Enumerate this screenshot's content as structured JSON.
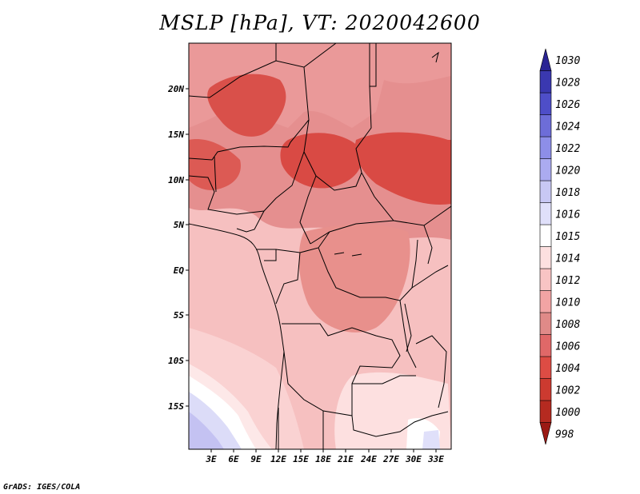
{
  "title": "MSLP [hPa], VT: 2020042600",
  "credit": "GrADS: IGES/COLA",
  "lat_labels": [
    "20N",
    "15N",
    "10N",
    "5N",
    "EQ",
    "5S",
    "10S",
    "15S"
  ],
  "lon_labels": [
    "3E",
    "6E",
    "9E",
    "12E",
    "15E",
    "18E",
    "21E",
    "24E",
    "27E",
    "30E",
    "33E"
  ],
  "colorbar": {
    "levels": [
      "998",
      "1000",
      "1002",
      "1004",
      "1006",
      "1008",
      "1010",
      "1012",
      "1014",
      "1015",
      "1016",
      "1018",
      "1020",
      "1022",
      "1024",
      "1026",
      "1028",
      "1030"
    ],
    "colors": [
      "#9b1a14",
      "#b52a20",
      "#cc3a30",
      "#dd4c44",
      "#e06868",
      "#e08a88",
      "#f2a4a4",
      "#f8c4c4",
      "#fde0e0",
      "#ffffff",
      "#e0e0fa",
      "#c8c8f4",
      "#ababf0",
      "#8d8ee8",
      "#6d6dd8",
      "#4e4ec8",
      "#3a38b0",
      "#2a2494"
    ]
  }
}
